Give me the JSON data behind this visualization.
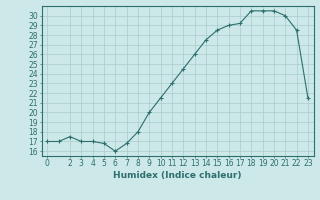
{
  "x": [
    0,
    1,
    2,
    3,
    4,
    5,
    6,
    7,
    8,
    9,
    10,
    11,
    12,
    13,
    14,
    15,
    16,
    17,
    18,
    19,
    20,
    21,
    22,
    23
  ],
  "y": [
    17,
    17,
    17.5,
    17,
    17,
    16.8,
    16,
    16.8,
    18,
    20,
    21.5,
    23,
    24.5,
    26,
    27.5,
    28.5,
    29,
    29.2,
    30.5,
    30.5,
    30.5,
    30,
    28.5,
    21.5
  ],
  "xlabel": "Humidex (Indice chaleur)",
  "xlim_min": -0.5,
  "xlim_max": 23.5,
  "ylim_min": 15.5,
  "ylim_max": 31.0,
  "yticks": [
    16,
    17,
    18,
    19,
    20,
    21,
    22,
    23,
    24,
    25,
    26,
    27,
    28,
    29,
    30
  ],
  "xticks": [
    0,
    2,
    3,
    4,
    5,
    6,
    7,
    8,
    9,
    10,
    11,
    12,
    13,
    14,
    15,
    16,
    17,
    18,
    19,
    20,
    21,
    22,
    23
  ],
  "line_color": "#2d6e6e",
  "marker": "+",
  "bg_color": "#cce8e8",
  "grid_color": "#aacccc",
  "axis_color": "#2d6e6e",
  "label_fontsize": 6.5,
  "tick_fontsize": 5.5
}
